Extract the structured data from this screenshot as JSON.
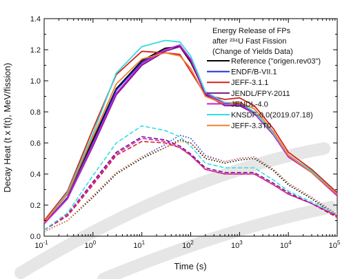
{
  "chart_data": {
    "type": "line",
    "xlabel": "Time (s)",
    "ylabel": "Decay Heat (t x f(t), MeV/fission)",
    "xscale": "log",
    "xlim": [
      0.1,
      100000
    ],
    "ylim": [
      0,
      1.4
    ],
    "x_ticks": [
      {
        "value": 0.1,
        "base": "10",
        "exp": "-1"
      },
      {
        "value": 1,
        "base": "10",
        "exp": "0"
      },
      {
        "value": 10,
        "base": "10",
        "exp": "1"
      },
      {
        "value": 100,
        "base": "10",
        "exp": "2"
      },
      {
        "value": 1000,
        "base": "10",
        "exp": "3"
      },
      {
        "value": 10000,
        "base": "10",
        "exp": "4"
      },
      {
        "value": 100000,
        "base": "10",
        "exp": "5"
      }
    ],
    "y_ticks": [
      "0.0",
      "0.2",
      "0.4",
      "0.6",
      "0.8",
      "1.0",
      "1.2",
      "1.4"
    ],
    "grid": false,
    "legend_position": "top-right",
    "legend_title": [
      "Energy Release of FPs",
      "after ²³⁴U Fast Fission",
      "(Change of Yields Data)"
    ],
    "series": [
      {
        "name": "Reference (\"origen.rev03\")",
        "color": "#000000",
        "style": "solid",
        "x": [
          0.1,
          0.3,
          1,
          3,
          10,
          30,
          60,
          100,
          200,
          500,
          1000,
          2000,
          5000,
          10000,
          30000,
          100000
        ],
        "y": [
          0.09,
          0.27,
          0.62,
          0.95,
          1.13,
          1.21,
          1.22,
          1.12,
          0.92,
          0.86,
          0.85,
          0.8,
          0.66,
          0.52,
          0.42,
          0.27
        ]
      },
      {
        "name": "ENDF/B-VII.1",
        "color": "#1c2fd6",
        "style": "solid",
        "x": [
          0.1,
          0.3,
          1,
          3,
          10,
          30,
          60,
          100,
          200,
          500,
          1000,
          2000,
          5000,
          10000,
          30000,
          100000
        ],
        "y": [
          0.08,
          0.25,
          0.6,
          0.94,
          1.12,
          1.2,
          1.23,
          1.13,
          0.92,
          0.85,
          0.85,
          0.79,
          0.65,
          0.51,
          0.41,
          0.26
        ]
      },
      {
        "name": "JEFF-3.1.1",
        "color": "#d81e1e",
        "style": "solid",
        "x": [
          0.1,
          0.3,
          1,
          3,
          10,
          30,
          60,
          100,
          200,
          500,
          1000,
          2000,
          5000,
          10000,
          30000,
          100000
        ],
        "y": [
          0.1,
          0.29,
          0.69,
          1.04,
          1.19,
          1.18,
          1.17,
          1.06,
          0.91,
          0.88,
          0.89,
          0.84,
          0.69,
          0.54,
          0.43,
          0.28
        ]
      },
      {
        "name": "JENDL/FPY-2011",
        "color": "#7a0f8c",
        "style": "solid",
        "x": [
          0.1,
          0.3,
          1,
          3,
          10,
          30,
          60,
          100,
          200,
          500,
          1000,
          2000,
          5000,
          10000,
          30000,
          100000
        ],
        "y": [
          0.08,
          0.24,
          0.58,
          0.91,
          1.1,
          1.19,
          1.22,
          1.13,
          0.91,
          0.84,
          0.84,
          0.79,
          0.65,
          0.51,
          0.41,
          0.26
        ]
      },
      {
        "name": "JENDL-4.0",
        "color": "#cc22cc",
        "style": "solid",
        "x": [
          0.1,
          0.3,
          1,
          3,
          10,
          30,
          60,
          100,
          200,
          500,
          1000,
          2000,
          5000,
          10000,
          30000,
          100000
        ],
        "y": [
          0.08,
          0.24,
          0.59,
          0.92,
          1.11,
          1.2,
          1.23,
          1.14,
          0.92,
          0.85,
          0.85,
          0.79,
          0.65,
          0.51,
          0.41,
          0.26
        ]
      },
      {
        "name": "KNSDF-0.0(2019.07.18)",
        "color": "#33dddd",
        "style": "solid",
        "x": [
          0.1,
          0.3,
          1,
          3,
          10,
          30,
          60,
          100,
          200,
          500,
          1000,
          2000,
          5000,
          10000,
          30000,
          100000
        ],
        "y": [
          0.09,
          0.28,
          0.66,
          1.05,
          1.22,
          1.26,
          1.25,
          1.16,
          0.93,
          0.86,
          0.86,
          0.8,
          0.66,
          0.52,
          0.42,
          0.27
        ]
      },
      {
        "name": "JEFF-3.3T0",
        "color": "#f07f2a",
        "style": "solid",
        "x": [
          0.1,
          0.3,
          1,
          3,
          10,
          30,
          60,
          100,
          200,
          500,
          1000,
          2000,
          5000,
          10000,
          30000,
          100000
        ],
        "y": [
          0.09,
          0.27,
          0.64,
          0.98,
          1.14,
          1.18,
          1.16,
          1.08,
          0.9,
          0.85,
          0.86,
          0.82,
          0.67,
          0.52,
          0.41,
          0.27
        ]
      },
      {
        "name": "",
        "color": "#000000",
        "style": "dotted",
        "x": [
          0.1,
          0.3,
          1,
          3,
          10,
          30,
          60,
          100,
          200,
          500,
          1000,
          2000,
          5000,
          10000,
          30000,
          100000
        ],
        "y": [
          0.03,
          0.1,
          0.25,
          0.4,
          0.5,
          0.57,
          0.62,
          0.6,
          0.5,
          0.47,
          0.49,
          0.5,
          0.42,
          0.33,
          0.24,
          0.13
        ]
      },
      {
        "name": "",
        "color": "#1c2fd6",
        "style": "dotted",
        "x": [
          0.1,
          0.3,
          1,
          3,
          10,
          30,
          60,
          100,
          200,
          500,
          1000,
          2000,
          5000,
          10000,
          30000,
          100000
        ],
        "y": [
          0.03,
          0.1,
          0.26,
          0.41,
          0.51,
          0.59,
          0.65,
          0.63,
          0.52,
          0.48,
          0.5,
          0.51,
          0.43,
          0.34,
          0.25,
          0.14
        ]
      },
      {
        "name": "",
        "color": "#d81e1e",
        "style": "dashed",
        "x": [
          0.1,
          0.3,
          1,
          3,
          10,
          30,
          60,
          100,
          200,
          500,
          1000,
          2000,
          5000,
          10000,
          30000,
          100000
        ],
        "y": [
          0.04,
          0.13,
          0.33,
          0.52,
          0.61,
          0.6,
          0.57,
          0.52,
          0.43,
          0.4,
          0.4,
          0.4,
          0.33,
          0.27,
          0.21,
          0.12
        ]
      },
      {
        "name": "",
        "color": "#7a0f8c",
        "style": "dashed",
        "x": [
          0.1,
          0.3,
          1,
          3,
          10,
          30,
          60,
          100,
          200,
          500,
          1000,
          2000,
          5000,
          10000,
          30000,
          100000
        ],
        "y": [
          0.04,
          0.14,
          0.35,
          0.54,
          0.64,
          0.62,
          0.58,
          0.53,
          0.44,
          0.41,
          0.41,
          0.41,
          0.34,
          0.28,
          0.21,
          0.13
        ]
      },
      {
        "name": "",
        "color": "#cc22cc",
        "style": "dashed",
        "x": [
          0.1,
          0.3,
          1,
          3,
          10,
          30,
          60,
          100,
          200,
          500,
          1000,
          2000,
          5000,
          10000,
          30000,
          100000
        ],
        "y": [
          0.04,
          0.14,
          0.34,
          0.53,
          0.63,
          0.61,
          0.57,
          0.52,
          0.43,
          0.4,
          0.4,
          0.4,
          0.33,
          0.27,
          0.21,
          0.13
        ]
      },
      {
        "name": "",
        "color": "#33dddd",
        "style": "dashed",
        "x": [
          0.1,
          0.3,
          1,
          3,
          10,
          30,
          60,
          100,
          200,
          500,
          1000,
          2000,
          5000,
          10000,
          30000,
          100000
        ],
        "y": [
          0.04,
          0.15,
          0.39,
          0.6,
          0.71,
          0.68,
          0.64,
          0.58,
          0.47,
          0.44,
          0.44,
          0.44,
          0.36,
          0.29,
          0.22,
          0.14
        ]
      },
      {
        "name": "",
        "color": "#f07f2a",
        "style": "dotted",
        "x": [
          0.1,
          0.3,
          1,
          3,
          10,
          30,
          60,
          100,
          200,
          500,
          1000,
          2000,
          5000,
          10000,
          30000,
          100000
        ],
        "y": [
          0.03,
          0.1,
          0.26,
          0.41,
          0.51,
          0.57,
          0.61,
          0.6,
          0.51,
          0.48,
          0.5,
          0.51,
          0.43,
          0.34,
          0.25,
          0.14
        ]
      }
    ]
  }
}
